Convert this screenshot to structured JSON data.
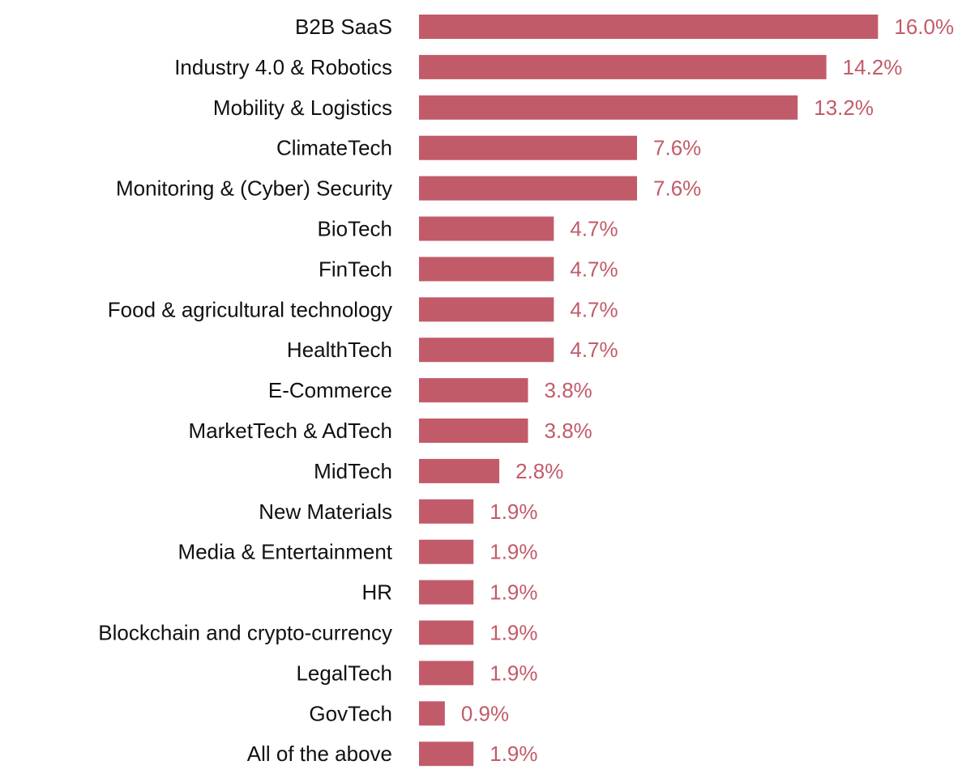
{
  "chart_data": {
    "type": "bar",
    "orientation": "horizontal",
    "title": "",
    "xlabel": "",
    "ylabel": "",
    "grid": false,
    "legend": "none",
    "value_suffix": "%",
    "value_decimals": 1,
    "xlim": [
      0,
      16
    ],
    "bar_color": "#c25b69",
    "label_color": "#c25b69",
    "text_color": "#111111",
    "categories": [
      "B2B SaaS",
      "Industry 4.0 & Robotics",
      "Mobility & Logistics",
      "ClimateTech",
      "Monitoring & (Cyber) Security",
      "BioTech",
      "FinTech",
      "Food & agricultural technology",
      "HealthTech",
      "E-Commerce",
      "MarketTech & AdTech",
      "MidTech",
      "New Materials",
      "Media & Entertainment",
      "HR",
      "Blockchain and crypto-currency",
      "LegalTech",
      "GovTech",
      "All of the above"
    ],
    "values": [
      16.0,
      14.2,
      13.2,
      7.6,
      7.6,
      4.7,
      4.7,
      4.7,
      4.7,
      3.8,
      3.8,
      2.8,
      1.9,
      1.9,
      1.9,
      1.9,
      1.9,
      0.9,
      1.9
    ]
  }
}
